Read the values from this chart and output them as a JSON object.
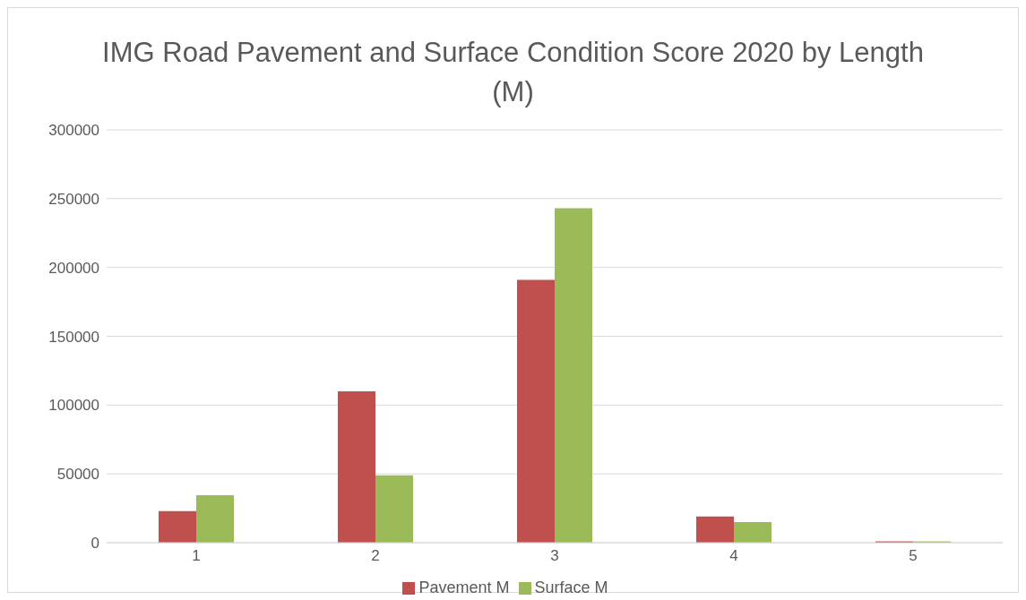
{
  "chart_data": {
    "type": "bar",
    "title": "IMG Road Pavement and Surface Condition Score 2020 by Length (M)",
    "categories": [
      "1",
      "2",
      "3",
      "4",
      "5"
    ],
    "series": [
      {
        "name": "Pavement M",
        "color": "#c0504d",
        "values": [
          23000,
          110000,
          191000,
          19000,
          1000
        ]
      },
      {
        "name": "Surface M",
        "color": "#9bbb59",
        "values": [
          34500,
          49000,
          243000,
          15000,
          1000
        ]
      }
    ],
    "ylim": [
      0,
      300000
    ],
    "yticks": [
      0,
      50000,
      100000,
      150000,
      200000,
      250000,
      300000
    ],
    "grid": "y",
    "legend": "bottom"
  }
}
